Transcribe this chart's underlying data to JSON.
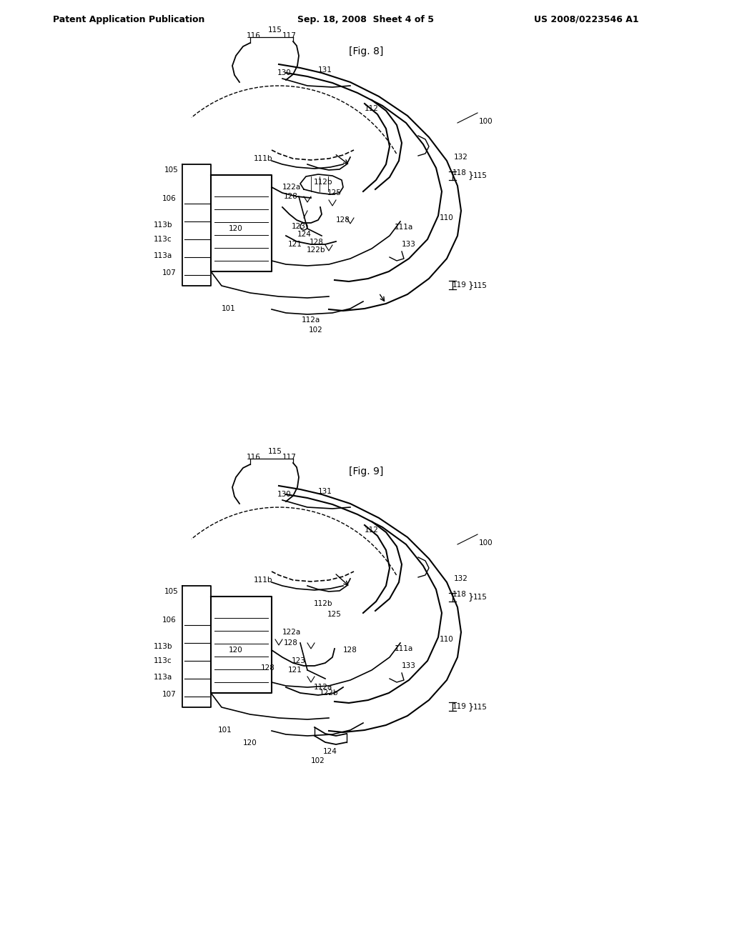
{
  "background_color": "#ffffff",
  "header_text": "Patent Application Publication",
  "header_date": "Sep. 18, 2008  Sheet 4 of 5",
  "header_patent": "US 2008/0223546 A1",
  "fig8_label": "[Fig. 8]",
  "fig9_label": "[Fig. 9]",
  "line_color": "#000000",
  "text_color": "#000000",
  "line_width": 1.2
}
